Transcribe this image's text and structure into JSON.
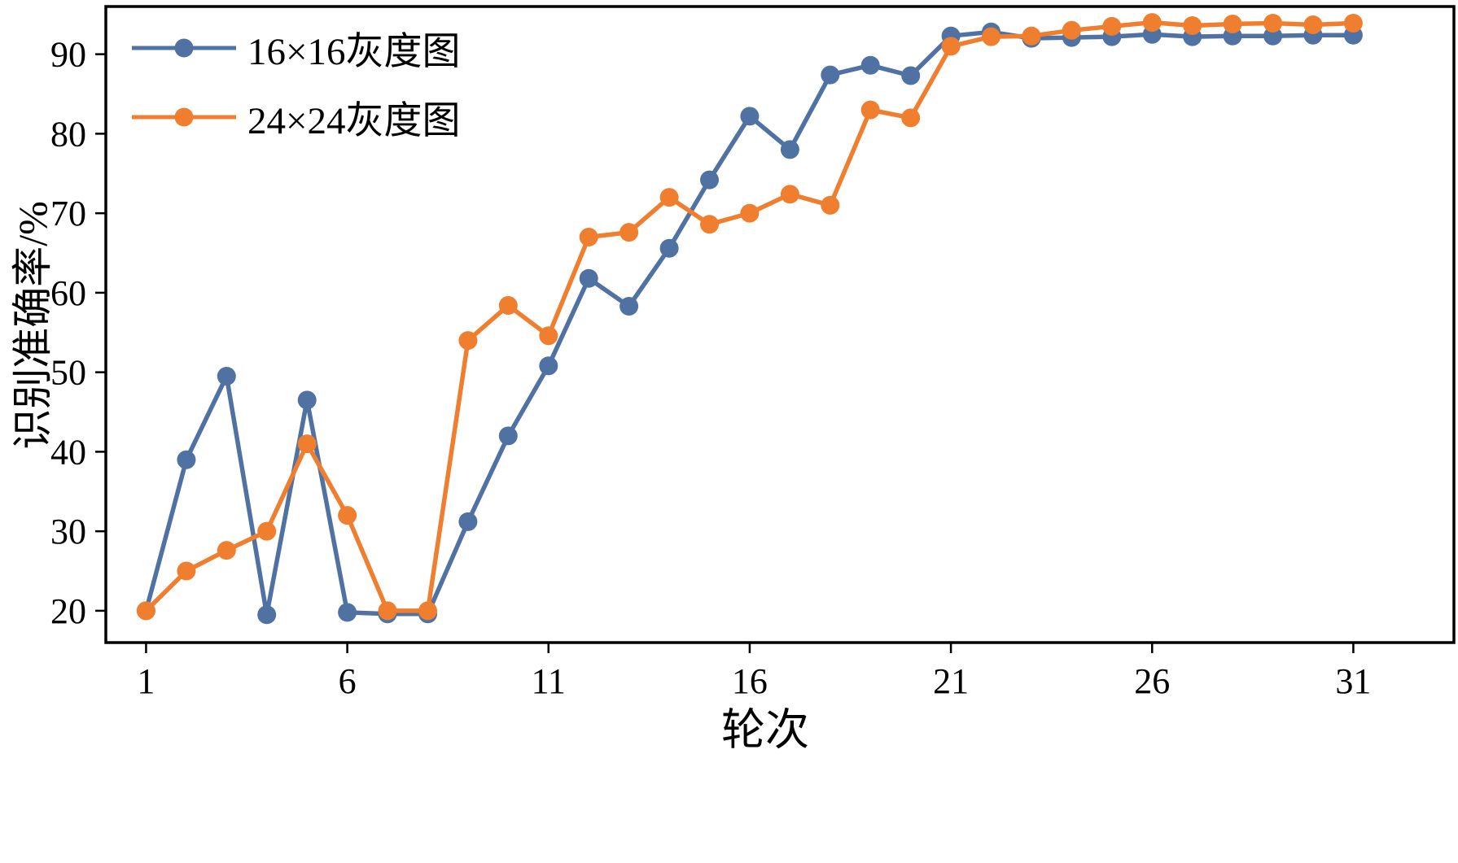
{
  "chart_data": {
    "type": "line",
    "title": "",
    "xlabel": "轮次",
    "ylabel": "识别准确率/%",
    "grid": false,
    "legend_position": "upper-left",
    "marker": "circle",
    "xticks": [
      1,
      6,
      11,
      16,
      21,
      26,
      31
    ],
    "yticks": [
      20,
      30,
      40,
      50,
      60,
      70,
      80,
      90
    ],
    "xlim": [
      0,
      33.5
    ],
    "ylim": [
      16,
      96
    ],
    "x": [
      1,
      2,
      3,
      4,
      5,
      6,
      7,
      8,
      9,
      10,
      11,
      12,
      13,
      14,
      15,
      16,
      17,
      18,
      19,
      20,
      21,
      22,
      23,
      24,
      25,
      26,
      27,
      28,
      29,
      30,
      31
    ],
    "series": [
      {
        "name": "16×16灰度图",
        "color": "#4f72a3",
        "values": [
          20,
          39,
          49.5,
          19.5,
          46.5,
          19.8,
          19.6,
          19.6,
          31.2,
          42,
          50.8,
          61.8,
          58.3,
          65.6,
          74.2,
          82.2,
          78,
          87.4,
          88.6,
          87.3,
          92.3,
          92.8,
          92,
          92.1,
          92.2,
          92.5,
          92.2,
          92.3,
          92.3,
          92.4,
          92.4
        ]
      },
      {
        "name": "24×24灰度图",
        "color": "#f07e2f",
        "values": [
          20,
          25,
          27.6,
          30,
          41,
          32,
          20,
          20,
          54,
          58.4,
          54.6,
          67,
          67.6,
          72,
          68.6,
          70,
          72.4,
          71,
          83,
          82,
          91,
          92.2,
          92.3,
          93,
          93.5,
          94,
          93.6,
          93.8,
          93.9,
          93.7,
          93.9
        ]
      }
    ]
  }
}
